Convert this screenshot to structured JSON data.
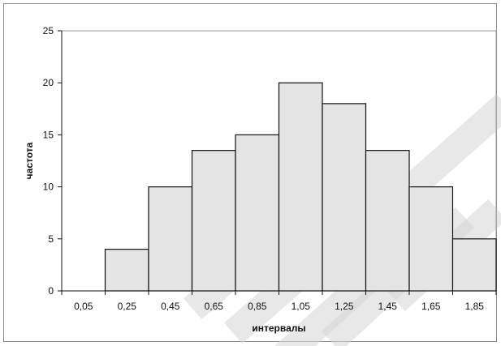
{
  "chart_data": {
    "type": "bar",
    "categories": [
      "0,05",
      "0,25",
      "0,45",
      "0,65",
      "0,85",
      "1,05",
      "1,25",
      "1,45",
      "1,65",
      "1,85"
    ],
    "values": [
      0,
      4,
      10,
      13.5,
      15,
      20,
      18,
      13.5,
      10,
      5
    ],
    "xlabel": "интервалы",
    "ylabel": "частота",
    "ylim": [
      0,
      25
    ],
    "yticks": [
      "0",
      "5",
      "10",
      "15",
      "20",
      "25"
    ],
    "grid": false,
    "legend": "none",
    "colors": {
      "bar_fill": "#e4e4e4",
      "bar_stroke": "#111111",
      "axis": "#111111",
      "plot_border": "#9a9a9a"
    }
  }
}
